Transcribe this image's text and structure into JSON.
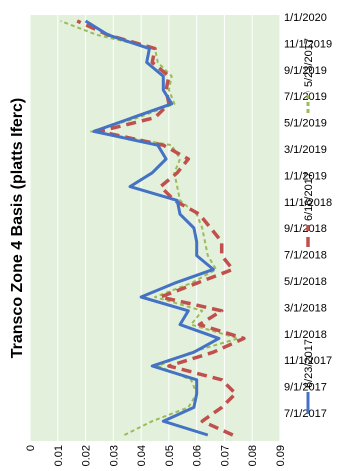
{
  "chart_data": {
    "type": "line",
    "title": "Transco Zone 4 Basis (platts Iferc)",
    "xlabel": "",
    "ylabel": "",
    "ylim": [
      0,
      0.09
    ],
    "y_ticks": [
      "0",
      "0.01",
      "0.02",
      "0.03",
      "0.04",
      "0.05",
      "0.06",
      "0.07",
      "0.08",
      "0.09"
    ],
    "x_tick_labels": [
      "7/1/2017",
      "9/1/2017",
      "11/1/2017",
      "1/1/2018",
      "3/1/2018",
      "5/1/2018",
      "7/1/2018",
      "9/1/2018",
      "11/1/2018",
      "1/1/2019",
      "3/1/2019",
      "5/1/2019",
      "7/1/2019",
      "9/1/2019",
      "11/1/2019",
      "1/1/2020"
    ],
    "plot_bg": "#e3f1dc",
    "grid": true,
    "legend_position": "bottom",
    "series": [
      {
        "name": "6/23/2017",
        "color": "#4472c4",
        "style": "solid",
        "values": [
          0.064,
          0.048,
          0.059,
          0.06,
          0.06,
          0.044,
          0.059,
          0.068,
          0.054,
          0.057,
          0.04,
          0.052,
          0.066,
          0.06,
          0.06,
          0.059,
          0.054,
          0.053,
          0.036,
          0.044,
          0.049,
          0.046,
          0.023,
          0.037,
          0.051,
          0.048,
          0.048,
          0.042,
          0.043,
          0.028,
          0.02
        ]
      },
      {
        "name": "6/16/2017",
        "color": "#c0504d",
        "style": "dashed",
        "values": [
          0.073,
          0.062,
          0.069,
          0.074,
          0.069,
          0.05,
          0.066,
          0.077,
          0.061,
          0.069,
          0.047,
          0.06,
          0.073,
          0.069,
          0.069,
          0.065,
          0.061,
          0.052,
          0.047,
          0.053,
          0.057,
          0.048,
          0.025,
          0.045,
          0.05,
          0.049,
          0.05,
          0.044,
          0.045,
          0.028,
          0.017
        ]
      },
      {
        "name": "5/23/2017",
        "color": "#9bbb59",
        "style": "dashed",
        "values": [
          0.034,
          0.044,
          0.057,
          0.06,
          0.058,
          0.046,
          0.058,
          0.075,
          0.058,
          0.062,
          0.045,
          0.058,
          0.067,
          0.064,
          0.063,
          0.062,
          0.06,
          0.054,
          0.053,
          0.052,
          0.054,
          0.051,
          0.022,
          0.039,
          0.052,
          0.05,
          0.051,
          0.046,
          0.045,
          0.024,
          0.011
        ]
      }
    ]
  }
}
